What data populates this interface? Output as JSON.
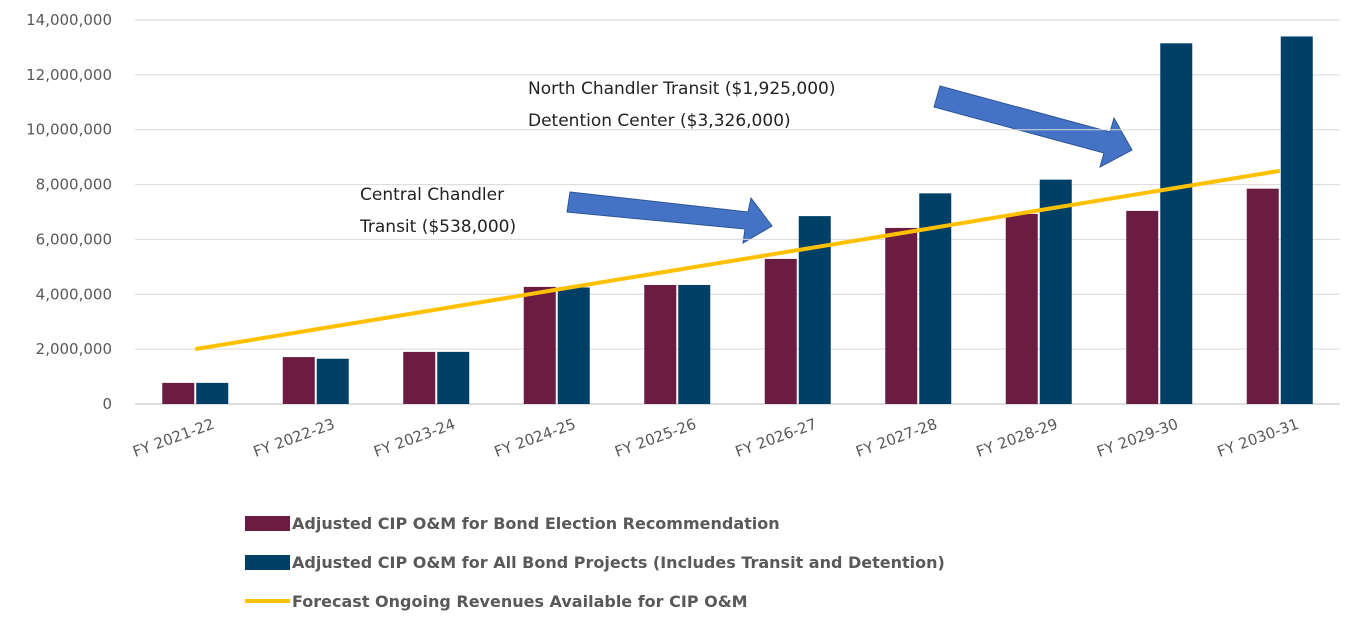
{
  "chart_data": {
    "type": "bar",
    "categories": [
      "FY 2021-22",
      "FY 2022-23",
      "FY 2023-24",
      "FY 2024-25",
      "FY 2025-26",
      "FY 2026-27",
      "FY 2027-28",
      "FY 2028-29",
      "FY 2029-30",
      "FY 2030-31"
    ],
    "series": [
      {
        "name": "Adjusted CIP O&M for Bond Election Recommendation",
        "color": "#6b1c42",
        "type": "bar",
        "values": [
          770000,
          1710000,
          1900000,
          4270000,
          4340000,
          5290000,
          6420000,
          6930000,
          7040000,
          7850000
        ]
      },
      {
        "name": "Adjusted CIP O&M for All Bond Projects (Includes Transit and Detention)",
        "color": "#003f66",
        "type": "bar",
        "values": [
          770000,
          1650000,
          1900000,
          4250000,
          4340000,
          6850000,
          7680000,
          8180000,
          13150000,
          13400000
        ]
      },
      {
        "name": "Forecast Ongoing Revenues Available for CIP O&M",
        "color": "#ffc000",
        "type": "line",
        "values": [
          2000000,
          2720000,
          3440000,
          4170000,
          4890000,
          5610000,
          6330000,
          7060000,
          7780000,
          8500000
        ]
      }
    ],
    "ylim": [
      0,
      14000000
    ],
    "yticks": [
      0,
      {
        "value": 2000000,
        "label": "2,000,000"
      },
      {
        "value": 4000000,
        "label": "4,000,000"
      },
      {
        "value": 6000000,
        "label": "6,000,000"
      },
      {
        "value": 8000000,
        "label": "8,000,000"
      },
      {
        "value": 10000000,
        "label": "10,000,000"
      },
      {
        "value": 12000000,
        "label": "12,000,000"
      },
      {
        "value": 14000000,
        "label": "14,000,000"
      }
    ],
    "grid": true,
    "annotations": [
      [
        "Central Chandler",
        "Transit ($538,000)"
      ],
      [
        "North Chandler Transit ($1,925,000)",
        "Detention Center ($3,326,000)"
      ]
    ]
  }
}
